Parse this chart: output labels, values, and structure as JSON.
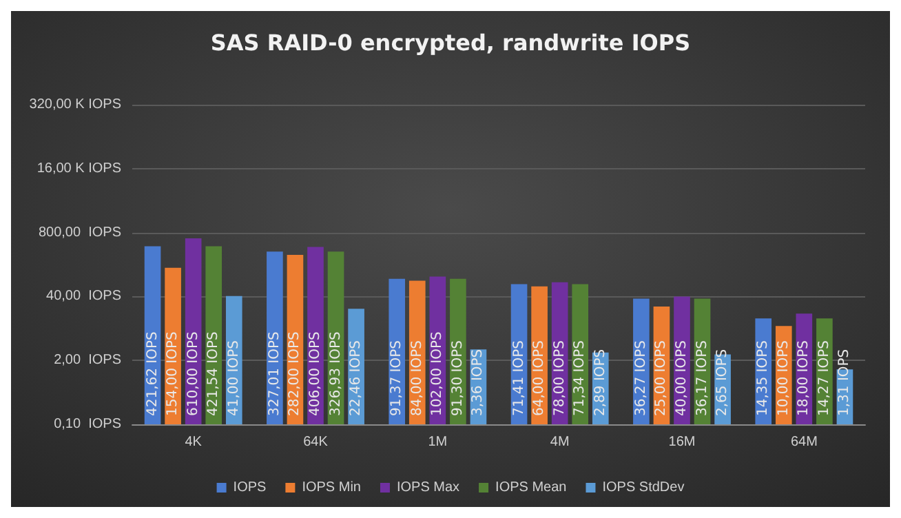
{
  "chart_data": {
    "type": "bar",
    "title": "SAS RAID-0 encrypted, randwrite IOPS",
    "categories": [
      "4K",
      "64K",
      "1M",
      "4M",
      "16M",
      "64M"
    ],
    "series": [
      {
        "name": "IOPS",
        "color": "#4a7bd0",
        "values": [
          421.62,
          327.01,
          91.37,
          71.41,
          36.27,
          14.35
        ],
        "value_labels": [
          "421,62 IOPS",
          "327,01 IOPS",
          "91,37 IOPS",
          "71,41 IOPS",
          "36,27 IOPS",
          "14,35 IOPS"
        ]
      },
      {
        "name": "IOPS Min",
        "color": "#ed7d31",
        "values": [
          154,
          282,
          84,
          64,
          25,
          10
        ],
        "value_labels": [
          "154,00 IOPS",
          "282,00 IOPS",
          "84,00 IOPS",
          "64,00 IOPS",
          "25,00 IOPS",
          "10,00 IOPS"
        ]
      },
      {
        "name": "IOPS Max",
        "color": "#7030a0",
        "values": [
          610,
          406,
          102,
          78,
          40,
          18
        ],
        "value_labels": [
          "610,00 IOPS",
          "406,00 IOPS",
          "102,00 IOPS",
          "78,00 IOPS",
          "40,00 IOPS",
          "18,00 IOPS"
        ]
      },
      {
        "name": "IOPS Mean",
        "color": "#548235",
        "values": [
          421.54,
          326.93,
          91.3,
          71.34,
          36.17,
          14.27
        ],
        "value_labels": [
          "421,54 IOPS",
          "326,93 IOPS",
          "91,30 IOPS",
          "71,34 IOPS",
          "36,17 IOPS",
          "14,27 IOPS"
        ]
      },
      {
        "name": "IOPS StdDev",
        "color": "#5b9bd5",
        "values": [
          41,
          22.46,
          3.36,
          2.89,
          2.65,
          1.31
        ],
        "value_labels": [
          "41,00 IOPS",
          "22,46 IOPS",
          "3,36 IOPS",
          "2,89 IOPS",
          "2,65 IOPS",
          "1,31 IOPS"
        ]
      }
    ],
    "log": "y",
    "ylim": [
      0.1,
      320000
    ],
    "yticks": [
      {
        "value": 0.1,
        "label": "0,10  IOPS"
      },
      {
        "value": 2,
        "label": "2,00  IOPS"
      },
      {
        "value": 40,
        "label": "40,00  IOPS"
      },
      {
        "value": 800,
        "label": "800,00  IOPS"
      },
      {
        "value": 16000,
        "label": "16,00 K IOPS"
      },
      {
        "value": 320000,
        "label": "320,00 K IOPS"
      }
    ],
    "grid": "y",
    "legend": "bottom"
  }
}
